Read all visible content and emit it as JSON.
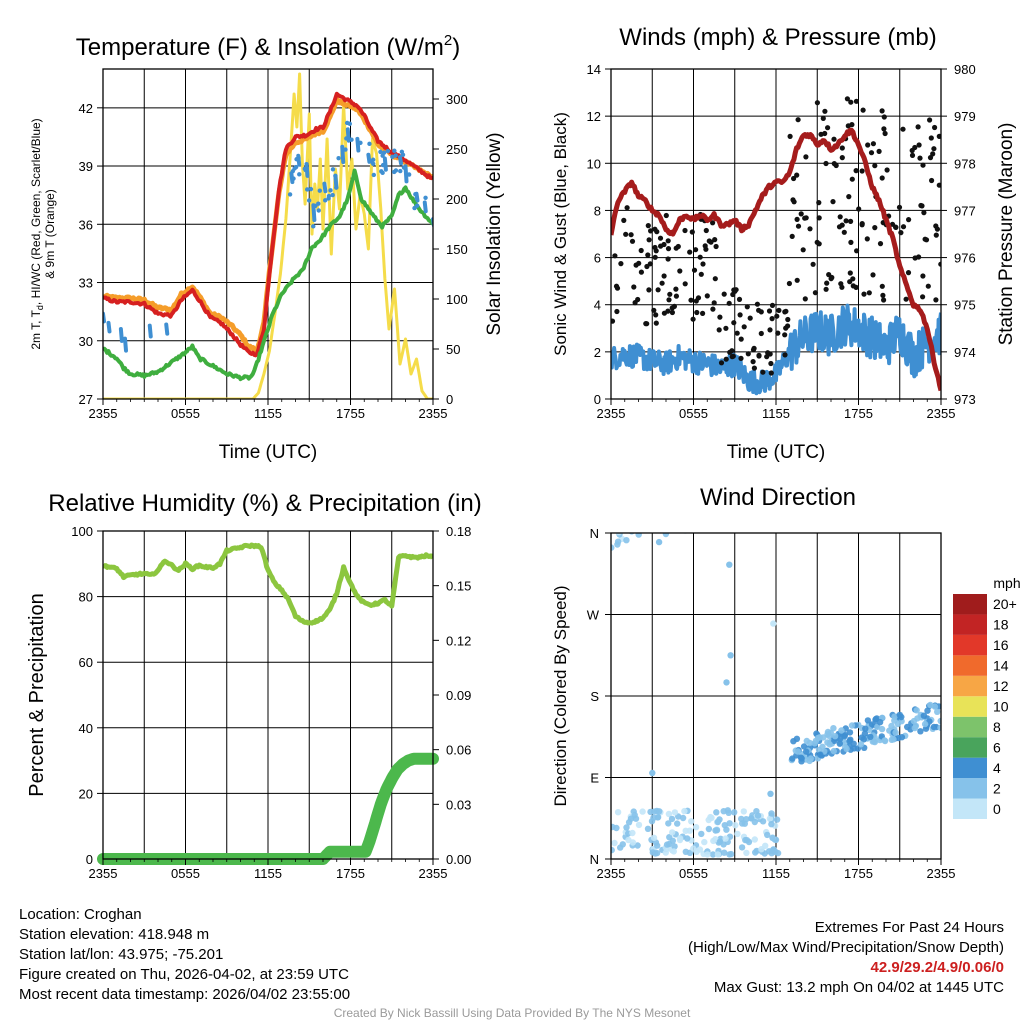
{
  "palette": {
    "temp_red": "#d62020",
    "dew_green": "#3fae3f",
    "hiwc_scarlet": "#ff3a1a",
    "wind_blue": "#3f8fd2",
    "t9m_orange": "#f59d2a",
    "insolation_yellow": "#f5dc4a",
    "pressure_maroon": "#a51c1c",
    "rh_green": "#8cc63f",
    "precip_green": "#4cb84c",
    "grid": "#000000",
    "credit": "#9a9a9a",
    "extremes": "#cc1f1f"
  },
  "chart_data": [
    {
      "id": "temperature",
      "type": "line",
      "title": "Temperature (F) & Insolation (W/m",
      "title_sup": "2",
      "title_end": ")",
      "xlabel": "Time (UTC)",
      "ylabel_lines": [
        "2m T, T",
        "d",
        ", HI/WC (Red, Green, Scarlet/Blue)",
        "& 9m T (Orange)"
      ],
      "y2label": "Solar Insolation (Yellow)",
      "x_ticks": [
        "2355",
        "0555",
        "1155",
        "1755",
        "2355"
      ],
      "xlim": [
        0,
        24
      ],
      "ylim": [
        27,
        44
      ],
      "y_ticks": [
        "27",
        "30",
        "33",
        "36",
        "39",
        "42"
      ],
      "y2lim": [
        0,
        330
      ],
      "y2_ticks": [
        "0",
        "50",
        "100",
        "150",
        "200",
        "250",
        "300"
      ],
      "series": [
        {
          "name": "9m T",
          "color": "#f59d2a",
          "width": 5,
          "kind": "line",
          "x": [
            0,
            1,
            2,
            3,
            4,
            5,
            5.7,
            6.5,
            7,
            7.8,
            8.6,
            9.3,
            10,
            10.6,
            11.2,
            11.7,
            12.2,
            12.8,
            13.3,
            14,
            14.8,
            15.5,
            16,
            16.5,
            17,
            17.5,
            18,
            18.5,
            19,
            19.5,
            20,
            21,
            22,
            23,
            24
          ],
          "y": [
            32.3,
            32.2,
            32.2,
            32.1,
            31.7,
            31.6,
            32.4,
            32.8,
            32.3,
            31.4,
            31.2,
            30.8,
            30.3,
            29.7,
            29.5,
            30.9,
            34.2,
            37.6,
            39.6,
            40.2,
            40.4,
            40.7,
            40.8,
            41.5,
            42.4,
            42.2,
            42.1,
            41.9,
            41.4,
            40.8,
            40.1,
            39.6,
            39.2,
            38.8,
            38.4
          ]
        },
        {
          "name": "2m T",
          "color": "#d62020",
          "width": 4,
          "kind": "line",
          "x": [
            0,
            1,
            2,
            3,
            4,
            5,
            5.7,
            6.5,
            7,
            7.8,
            8.6,
            9.3,
            10,
            10.6,
            11.2,
            11.7,
            12.2,
            12.8,
            13.3,
            14,
            14.8,
            15.5,
            16,
            16.5,
            17,
            17.5,
            18,
            18.5,
            19,
            19.5,
            20,
            21,
            22,
            23,
            24
          ],
          "y": [
            32.2,
            32.0,
            32.0,
            31.9,
            31.4,
            31.3,
            32.1,
            32.6,
            32.1,
            31.2,
            30.9,
            30.4,
            29.8,
            29.4,
            29.3,
            30.6,
            34.1,
            37.8,
            39.9,
            40.5,
            40.6,
            40.9,
            41.0,
            41.8,
            42.7,
            42.5,
            42.3,
            42.1,
            41.6,
            40.9,
            40.3,
            39.7,
            39.3,
            38.8,
            38.3
          ]
        },
        {
          "name": "Td",
          "color": "#3fae3f",
          "width": 4,
          "kind": "line",
          "x": [
            0,
            1,
            1.5,
            2,
            3,
            4,
            5,
            6,
            6.5,
            7,
            8,
            9,
            10,
            10.7,
            11,
            12,
            12.3,
            13,
            14,
            14.5,
            15.2,
            15.8,
            16.5,
            17.2,
            17.8,
            18.3,
            18.8,
            19.3,
            19.8,
            20.3,
            21,
            21.5,
            22,
            22.5,
            23,
            23.5,
            24
          ],
          "y": [
            29.6,
            29.1,
            28.6,
            28.3,
            28.2,
            28.4,
            28.9,
            29.4,
            29.7,
            29.1,
            28.7,
            28.3,
            28.1,
            28.1,
            28.4,
            30.6,
            31.3,
            32.4,
            33.3,
            33.6,
            34.8,
            35.2,
            35.9,
            36.4,
            37.3,
            38.7,
            37.3,
            36.8,
            36.3,
            35.9,
            36.4,
            37.5,
            37.9,
            37.3,
            36.8,
            36.4,
            36.0
          ]
        },
        {
          "name": "HI/WC",
          "color": "#3f8fd2",
          "width": 4,
          "kind": "dashes",
          "x": [
            0,
            0.4,
            1.3,
            1.6,
            3.4,
            4.6,
            13.7,
            14.2,
            14.8,
            15.3,
            16.1,
            16.9,
            17.4,
            17.8,
            18.5,
            19.3,
            20.5,
            21.6,
            22,
            22.8,
            23.4,
            24
          ],
          "y": [
            31.2,
            30.7,
            30.3,
            29.8,
            30.5,
            30.6,
            38.4,
            39.3,
            38.8,
            36.6,
            37.9,
            38.2,
            39.6,
            40.6,
            40.1,
            39.4,
            39.1,
            39.3,
            38.6,
            37.4,
            36.9,
            36.1
          ]
        },
        {
          "name": "Solar Insolation",
          "color": "#f5dc4a",
          "width": 3,
          "kind": "line",
          "axis": "y2",
          "x": [
            0,
            1,
            2,
            3,
            4,
            5,
            6,
            7,
            8,
            9,
            10,
            10.5,
            10.9,
            11.3,
            11.7,
            12.1,
            12.5,
            12.9,
            13.3,
            13.6,
            13.9,
            14.1,
            14.3,
            14.5,
            14.7,
            15,
            15.2,
            15.4,
            15.6,
            15.8,
            16,
            16.3,
            16.6,
            16.9,
            17.2,
            17.5,
            17.8,
            18.1,
            18.4,
            18.7,
            19,
            19.3,
            19.6,
            19.9,
            20.2,
            20.5,
            20.8,
            21.2,
            21.6,
            22,
            22.4,
            22.8,
            23.2,
            23.6,
            24
          ],
          "y": [
            0,
            0,
            0,
            0,
            0,
            0,
            0,
            0,
            0,
            0,
            0,
            0,
            0,
            6,
            25,
            48,
            85,
            125,
            180,
            240,
            305,
            272,
            325,
            235,
            195,
            285,
            165,
            215,
            190,
            240,
            170,
            260,
            145,
            230,
            190,
            295,
            210,
            240,
            170,
            205,
            185,
            150,
            260,
            245,
            190,
            120,
            70,
            110,
            35,
            60,
            25,
            40,
            8,
            0,
            0
          ]
        }
      ]
    },
    {
      "id": "winds",
      "type": "line",
      "title": "Winds (mph) & Pressure (mb)",
      "xlabel": "Time (UTC)",
      "ylabel": "Sonic Wind & Gust (Blue, Black)",
      "y2label": "Station Pressure (Maroon)",
      "x_ticks": [
        "2355",
        "0555",
        "1155",
        "1755",
        "2355"
      ],
      "xlim": [
        0,
        24
      ],
      "ylim": [
        0,
        14
      ],
      "y_ticks": [
        "0",
        "2",
        "4",
        "6",
        "8",
        "10",
        "12",
        "14"
      ],
      "y2lim": [
        973,
        980
      ],
      "y2_ticks": [
        "973",
        "974",
        "975",
        "976",
        "977",
        "978",
        "979",
        "980"
      ],
      "series": [
        {
          "name": "Station Pressure",
          "color": "#a51c1c",
          "width": 5,
          "kind": "line",
          "axis": "y2",
          "x": [
            0,
            0.5,
            1,
            1.5,
            2,
            2.5,
            3,
            3.5,
            4,
            4.5,
            5,
            5.5,
            6,
            6.5,
            7,
            7.5,
            8,
            8.5,
            9,
            9.5,
            10,
            10.5,
            11,
            11.5,
            12,
            12.5,
            13,
            13.5,
            14,
            14.5,
            15,
            15.5,
            16,
            16.5,
            17,
            17.5,
            18,
            18.5,
            19,
            19.5,
            20,
            20.5,
            21,
            21.5,
            22,
            22.5,
            23,
            23.5,
            24
          ],
          "y": [
            976.5,
            977.2,
            977.4,
            977.6,
            977.3,
            977.2,
            977.0,
            976.9,
            976.6,
            976.5,
            976.8,
            976.9,
            976.8,
            976.9,
            976.8,
            976.9,
            976.7,
            976.7,
            976.8,
            976.6,
            976.7,
            977.0,
            977.3,
            977.5,
            977.6,
            977.6,
            977.8,
            978.3,
            978.6,
            978.6,
            978.4,
            978.5,
            978.3,
            978.4,
            978.6,
            978.7,
            978.4,
            978.0,
            977.5,
            977.2,
            976.8,
            976.4,
            975.8,
            975.4,
            975.0,
            974.9,
            974.5,
            973.8,
            973.2
          ]
        },
        {
          "name": "Sonic Wind",
          "color": "#3f8fd2",
          "width": 4,
          "kind": "noisy",
          "x": [
            0,
            1,
            2,
            3,
            4,
            5,
            6,
            7,
            8,
            9,
            10,
            11,
            12,
            13,
            14,
            15,
            16,
            17,
            18,
            19,
            20,
            21,
            22,
            23,
            24
          ],
          "y": [
            1.7,
            1.9,
            1.8,
            1.6,
            1.5,
            1.8,
            1.6,
            1.5,
            1.3,
            1.5,
            0.8,
            0.7,
            1.0,
            2.0,
            2.6,
            2.9,
            2.7,
            3.2,
            3.0,
            2.6,
            2.2,
            2.9,
            1.8,
            2.4,
            2.8
          ]
        },
        {
          "name": "Gust",
          "color": "#111111",
          "kind": "scatter",
          "count": 280,
          "points": "generated"
        }
      ]
    },
    {
      "id": "humidity",
      "type": "line",
      "title": "Relative Humidity (%) & Precipitation (in)",
      "ylabel": "Percent & Precipitation",
      "x_ticks": [
        "2355",
        "0555",
        "1155",
        "1755",
        "2355"
      ],
      "xlim": [
        0,
        24
      ],
      "ylim": [
        0,
        100
      ],
      "y_ticks": [
        "0",
        "20",
        "40",
        "60",
        "80",
        "100"
      ],
      "y2lim": [
        0,
        0.18
      ],
      "y2_ticks": [
        "0.00",
        "0.03",
        "0.06",
        "0.09",
        "0.12",
        "0.15",
        "0.18"
      ],
      "series": [
        {
          "name": "Relative Humidity",
          "color": "#8cc63f",
          "width": 5,
          "kind": "line",
          "x": [
            0,
            0.5,
            1,
            1.5,
            2,
            2.5,
            3,
            3.5,
            4,
            4.5,
            5,
            5.5,
            6,
            6.5,
            7,
            7.5,
            8,
            8.5,
            9,
            9.5,
            10,
            10.5,
            11,
            11.5,
            12,
            12.5,
            13,
            13.5,
            14,
            14.5,
            15,
            15.5,
            16,
            16.5,
            17,
            17.5,
            18,
            18.5,
            19,
            19.5,
            20,
            20.5,
            21,
            21.5,
            22,
            22.5,
            23,
            23.5,
            24
          ],
          "y": [
            89.5,
            89,
            88.5,
            86,
            86.5,
            86.8,
            87,
            86.5,
            88,
            91,
            89.5,
            88,
            90,
            88.5,
            89.5,
            89,
            88.8,
            90,
            94,
            94.5,
            95,
            95.5,
            95.5,
            95.2,
            88,
            84,
            82,
            79,
            74,
            72.5,
            72,
            72.5,
            73.5,
            76,
            81,
            89,
            84,
            80,
            78,
            77.5,
            78,
            79,
            77,
            92,
            92.5,
            92,
            92,
            92.5,
            92
          ]
        },
        {
          "name": "Precipitation",
          "color": "#4cb84c",
          "width": 12,
          "kind": "line",
          "axis": "y2",
          "x": [
            0,
            16,
            16.5,
            19.1,
            19.4,
            19.8,
            20.2,
            20.6,
            21,
            21.4,
            21.8,
            22.2,
            22.6,
            23,
            24
          ],
          "y": [
            0,
            0,
            0.004,
            0.004,
            0.01,
            0.02,
            0.03,
            0.038,
            0.044,
            0.049,
            0.052,
            0.054,
            0.055,
            0.055,
            0.055
          ]
        }
      ]
    },
    {
      "id": "direction",
      "type": "scatter",
      "title": "Wind Direction",
      "ylabel": "Direction (Colored By Speed)",
      "x_ticks": [
        "2355",
        "0555",
        "1155",
        "1755",
        "2355"
      ],
      "xlim": [
        0,
        24
      ],
      "y_labels": [
        "N",
        "E",
        "S",
        "W",
        "N"
      ],
      "y_degrees": [
        0,
        90,
        180,
        270,
        360
      ],
      "colorbar": {
        "title": "mph",
        "labels": [
          "0",
          "2",
          "4",
          "6",
          "8",
          "10",
          "12",
          "14",
          "16",
          "18",
          "20+"
        ],
        "colors": [
          "#c3e6f8",
          "#86c2ea",
          "#3f8fd2",
          "#49a45c",
          "#7dc36b",
          "#e8e358",
          "#f7a645",
          "#f06a2c",
          "#e23829",
          "#c22424",
          "#a01c1c"
        ]
      },
      "clusters": [
        {
          "x_range": [
            0,
            12.2
          ],
          "deg_range": [
            5,
            55
          ],
          "count": 170,
          "speed_range": [
            0,
            3
          ]
        },
        {
          "x_range": [
            0,
            12.2
          ],
          "deg_range": [
            352,
            360
          ],
          "count": 70,
          "speed_range": [
            0,
            2
          ]
        },
        {
          "x_range": [
            13,
            24
          ],
          "deg_range": [
            112,
            178
          ],
          "count": 180,
          "speed_range": [
            1.5,
            4.5
          ]
        }
      ]
    }
  ],
  "info": {
    "location": "Location: Croghan",
    "elevation": "Station elevation: 418.948 m",
    "latlon": "Station lat/lon: 43.975; -75.201",
    "created": "Figure created on Thu, 2026-04-02, at 23:59 UTC",
    "recent": "Most recent data timestamp: 2026/04/02 23:55:00"
  },
  "extremes": {
    "title": "Extremes For Past 24 Hours",
    "subtitle": "(High/Low/Max Wind/Precipitation/Snow Depth)",
    "values": "42.9/29.2/4.9/0.06/0",
    "max_gust": "Max Gust: 13.2 mph On 04/02 at 1445 UTC"
  },
  "credit": "Created By Nick Bassill Using Data Provided By The NYS Mesonet"
}
